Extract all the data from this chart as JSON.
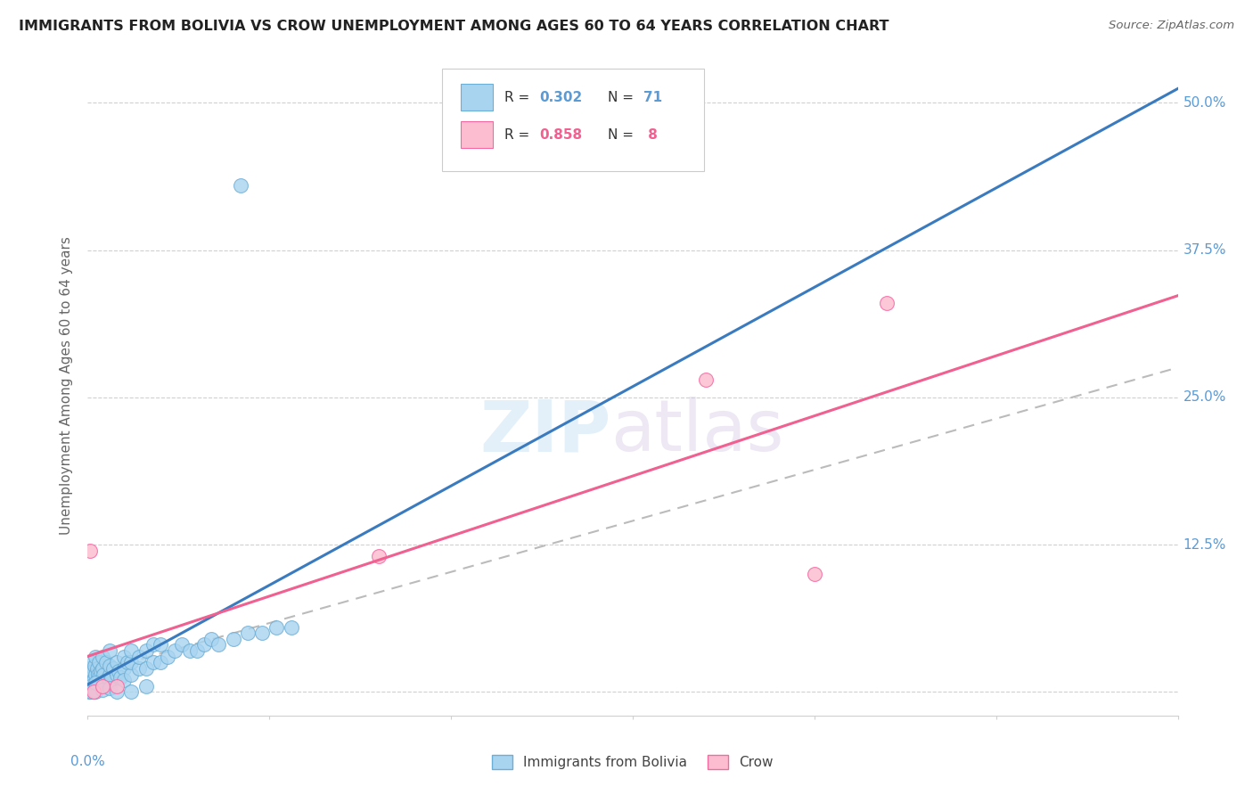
{
  "title": "IMMIGRANTS FROM BOLIVIA VS CROW UNEMPLOYMENT AMONG AGES 60 TO 64 YEARS CORRELATION CHART",
  "source": "Source: ZipAtlas.com",
  "ylabel": "Unemployment Among Ages 60 to 64 years",
  "xlim": [
    0,
    0.15
  ],
  "ylim": [
    -0.02,
    0.54
  ],
  "ytick_positions": [
    0,
    0.125,
    0.25,
    0.375,
    0.5
  ],
  "ytick_labels_right": [
    "",
    "12.5%",
    "25.0%",
    "37.5%",
    "50.0%"
  ],
  "color_blue_fill": "#a8d4f0",
  "color_blue_edge": "#6baed6",
  "color_pink_fill": "#fcbdd1",
  "color_pink_edge": "#f768a1",
  "color_blue_line": "#3a7bbf",
  "color_pink_line": "#f06090",
  "color_dashed_line": "#bbbbbb",
  "color_axis_labels": "#5b9bd5",
  "color_grid": "#d0d0d0",
  "bolivia_x": [
    0.0002,
    0.0003,
    0.0004,
    0.0005,
    0.0005,
    0.0006,
    0.0007,
    0.0008,
    0.0009,
    0.001,
    0.001,
    0.0012,
    0.0013,
    0.0014,
    0.0015,
    0.0016,
    0.0018,
    0.002,
    0.002,
    0.002,
    0.0022,
    0.0025,
    0.0025,
    0.003,
    0.003,
    0.003,
    0.0032,
    0.0035,
    0.004,
    0.004,
    0.0042,
    0.0045,
    0.005,
    0.005,
    0.005,
    0.0055,
    0.006,
    0.006,
    0.006,
    0.007,
    0.007,
    0.008,
    0.008,
    0.009,
    0.009,
    0.01,
    0.01,
    0.011,
    0.012,
    0.013,
    0.014,
    0.015,
    0.016,
    0.017,
    0.018,
    0.02,
    0.022,
    0.024,
    0.026,
    0.028,
    0.0002,
    0.0003,
    0.0005,
    0.001,
    0.001,
    0.002,
    0.003,
    0.004,
    0.006,
    0.008,
    0.021
  ],
  "bolivia_y": [
    0.02,
    0.015,
    0.01,
    0.008,
    0.025,
    0.012,
    0.018,
    0.01,
    0.022,
    0.015,
    0.03,
    0.008,
    0.02,
    0.015,
    0.012,
    0.025,
    0.018,
    0.01,
    0.02,
    0.03,
    0.015,
    0.01,
    0.025,
    0.015,
    0.022,
    0.035,
    0.012,
    0.02,
    0.015,
    0.025,
    0.018,
    0.012,
    0.02,
    0.03,
    0.01,
    0.025,
    0.015,
    0.025,
    0.035,
    0.02,
    0.03,
    0.02,
    0.035,
    0.025,
    0.04,
    0.025,
    0.04,
    0.03,
    0.035,
    0.04,
    0.035,
    0.035,
    0.04,
    0.045,
    0.04,
    0.045,
    0.05,
    0.05,
    0.055,
    0.055,
    0.0,
    0.005,
    0.0,
    0.0,
    0.008,
    0.002,
    0.003,
    0.0,
    0.0,
    0.005,
    0.43
  ],
  "crow_x": [
    0.0003,
    0.0008,
    0.002,
    0.004,
    0.04,
    0.085,
    0.1,
    0.11
  ],
  "crow_y": [
    0.12,
    0.0,
    0.005,
    0.005,
    0.115,
    0.265,
    0.1,
    0.33
  ],
  "blue_line_x0": 0.0,
  "blue_line_y0": 0.01,
  "blue_line_x1": 0.028,
  "blue_line_y1": 0.14,
  "pink_line_x0": 0.0,
  "pink_line_y0": -0.005,
  "pink_line_x1": 0.11,
  "pink_line_y1": 0.345,
  "dash_line_x0": 0.0,
  "dash_line_y0": 0.005,
  "dash_line_x1": 0.15,
  "dash_line_y1": 0.34
}
